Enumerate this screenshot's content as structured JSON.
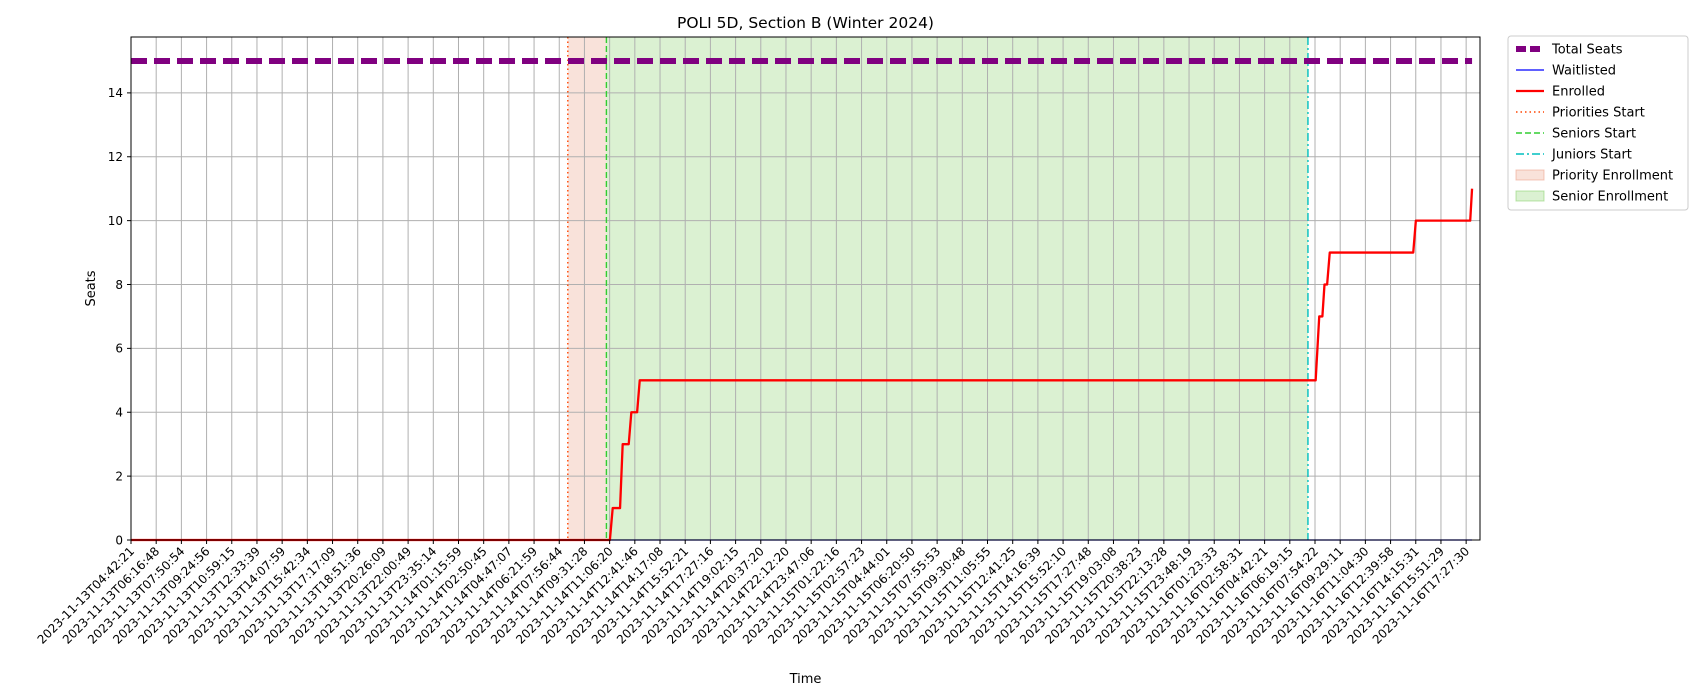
{
  "chart_data": {
    "type": "line",
    "title": "POLI 5D, Section B (Winter 2024)",
    "xlabel": "Time",
    "ylabel": "Seats",
    "ylim": [
      0,
      15.75
    ],
    "yticks": [
      0,
      2,
      4,
      6,
      8,
      10,
      12,
      14
    ],
    "grid": true,
    "legend_position": "outside upper right",
    "x_ticks": [
      "2023-11-13T04:42:21",
      "2023-11-13T06:16:48",
      "2023-11-13T07:50:54",
      "2023-11-13T09:24:56",
      "2023-11-13T10:59:15",
      "2023-11-13T12:33:39",
      "2023-11-13T14:07:59",
      "2023-11-13T15:42:34",
      "2023-11-13T17:17:09",
      "2023-11-13T18:51:36",
      "2023-11-13T20:26:09",
      "2023-11-13T22:00:49",
      "2023-11-13T23:35:14",
      "2023-11-14T01:15:59",
      "2023-11-14T02:50:45",
      "2023-11-14T04:47:07",
      "2023-11-14T06:21:59",
      "2023-11-14T07:56:44",
      "2023-11-14T09:31:28",
      "2023-11-14T11:06:20",
      "2023-11-14T12:41:46",
      "2023-11-14T14:17:08",
      "2023-11-14T15:52:21",
      "2023-11-14T17:27:16",
      "2023-11-14T19:02:15",
      "2023-11-14T20:37:20",
      "2023-11-14T22:12:20",
      "2023-11-14T23:47:06",
      "2023-11-15T01:22:16",
      "2023-11-15T02:57:23",
      "2023-11-15T04:44:01",
      "2023-11-15T06:20:50",
      "2023-11-15T07:55:53",
      "2023-11-15T09:30:48",
      "2023-11-15T11:05:55",
      "2023-11-15T12:41:25",
      "2023-11-15T14:16:39",
      "2023-11-15T15:52:10",
      "2023-11-15T17:27:48",
      "2023-11-15T19:03:08",
      "2023-11-15T20:38:23",
      "2023-11-15T22:13:28",
      "2023-11-15T23:48:19",
      "2023-11-16T01:23:33",
      "2023-11-16T02:58:31",
      "2023-11-16T04:42:21",
      "2023-11-16T06:19:15",
      "2023-11-16T07:54:22",
      "2023-11-16T09:29:11",
      "2023-11-16T11:04:30",
      "2023-11-16T12:39:58",
      "2023-11-16T14:15:31",
      "2023-11-16T15:51:29",
      "2023-11-16T17:27:30"
    ],
    "series": [
      {
        "name": "Total Seats",
        "color": "#800080",
        "style": "dashed-thick",
        "points": [
          [
            "2023-11-13T04:42:21",
            15
          ],
          [
            "2023-11-16T17:50:00",
            15
          ]
        ]
      },
      {
        "name": "Waitlisted",
        "color": "#0000ff",
        "style": "solid-thin",
        "points": [
          [
            "2023-11-13T04:42:21",
            0
          ],
          [
            "2023-11-16T17:50:00",
            0
          ]
        ]
      },
      {
        "name": "Enrolled",
        "color": "#ff0000",
        "style": "solid",
        "points": [
          [
            "2023-11-13T04:42:21",
            0
          ],
          [
            "2023-11-14T11:06:20",
            0
          ],
          [
            "2023-11-14T11:17:00",
            1
          ],
          [
            "2023-11-14T11:45:00",
            1
          ],
          [
            "2023-11-14T11:55:00",
            3
          ],
          [
            "2023-11-14T12:18:00",
            3
          ],
          [
            "2023-11-14T12:28:00",
            4
          ],
          [
            "2023-11-14T12:50:00",
            4
          ],
          [
            "2023-11-14T13:00:00",
            5
          ],
          [
            "2023-11-16T07:54:22",
            5
          ],
          [
            "2023-11-16T08:08:00",
            7
          ],
          [
            "2023-11-16T08:20:00",
            7
          ],
          [
            "2023-11-16T08:28:00",
            8
          ],
          [
            "2023-11-16T08:38:00",
            8
          ],
          [
            "2023-11-16T08:48:00",
            9
          ],
          [
            "2023-11-16T14:06:00",
            9
          ],
          [
            "2023-11-16T14:16:00",
            10
          ],
          [
            "2023-11-16T17:43:00",
            10
          ],
          [
            "2023-11-16T17:50:00",
            11
          ]
        ]
      }
    ],
    "markers": [
      {
        "name": "Priorities Start",
        "color": "#ff4500",
        "style": "dotted",
        "x": "2023-11-14T08:26:00"
      },
      {
        "name": "Seniors Start",
        "color": "#32cd32",
        "style": "dashed",
        "x": "2023-11-14T10:53:00"
      },
      {
        "name": "Juniors Start",
        "color": "#00bfbf",
        "style": "dashdot",
        "x": "2023-11-16T07:25:00"
      }
    ],
    "spans": [
      {
        "name": "Priority Enrollment",
        "color": "#e9967a",
        "opacity": 0.28,
        "from": "2023-11-14T08:26:00",
        "to": "2023-11-14T10:53:00"
      },
      {
        "name": "Senior Enrollment",
        "color": "#7ccd5c",
        "opacity": 0.28,
        "from": "2023-11-14T10:53:00",
        "to": "2023-11-16T07:25:00"
      }
    ],
    "legend": [
      {
        "label": "Total Seats",
        "kind": "line",
        "color": "#800080",
        "style": "dashed-thick"
      },
      {
        "label": "Waitlisted",
        "kind": "line",
        "color": "#0000ff",
        "style": "solid-thin"
      },
      {
        "label": "Enrolled",
        "kind": "line",
        "color": "#ff0000",
        "style": "solid"
      },
      {
        "label": "Priorities Start",
        "kind": "line",
        "color": "#ff4500",
        "style": "dotted"
      },
      {
        "label": "Seniors Start",
        "kind": "line",
        "color": "#32cd32",
        "style": "dashed"
      },
      {
        "label": "Juniors Start",
        "kind": "line",
        "color": "#00bfbf",
        "style": "dashdot"
      },
      {
        "label": "Priority Enrollment",
        "kind": "patch",
        "color": "#e9967a",
        "opacity": 0.28
      },
      {
        "label": "Senior Enrollment",
        "kind": "patch",
        "color": "#7ccd5c",
        "opacity": 0.28
      }
    ]
  }
}
